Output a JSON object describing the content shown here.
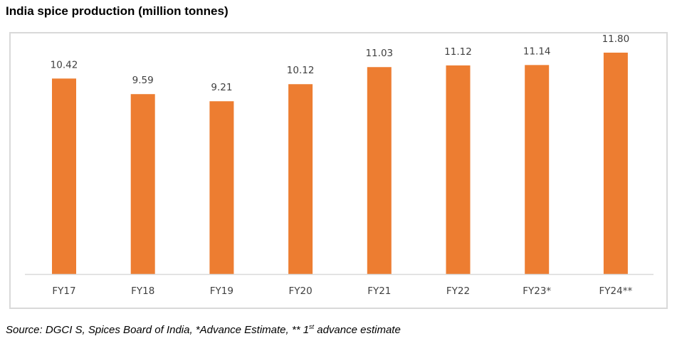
{
  "chart_data": {
    "type": "bar",
    "title": "India spice production (million tonnes)",
    "categories": [
      "FY17",
      "FY18",
      "FY19",
      "FY20",
      "FY21",
      "FY22",
      "FY23*",
      "FY24**"
    ],
    "values": [
      10.42,
      9.59,
      9.21,
      10.12,
      11.03,
      11.12,
      11.14,
      11.8
    ],
    "value_labels": [
      "10.42",
      "9.59",
      "9.21",
      "10.12",
      "11.03",
      "11.12",
      "11.14",
      "11.80"
    ],
    "ylim": [
      0,
      12
    ],
    "grid": false,
    "bar_color": "#ED7D31",
    "xlabel": "",
    "ylabel": ""
  },
  "source": {
    "prefix": "Source: DGCI S, Spices Board of India, *Advance Estimate, ** 1",
    "sup": "st",
    "suffix": " advance estimate"
  }
}
